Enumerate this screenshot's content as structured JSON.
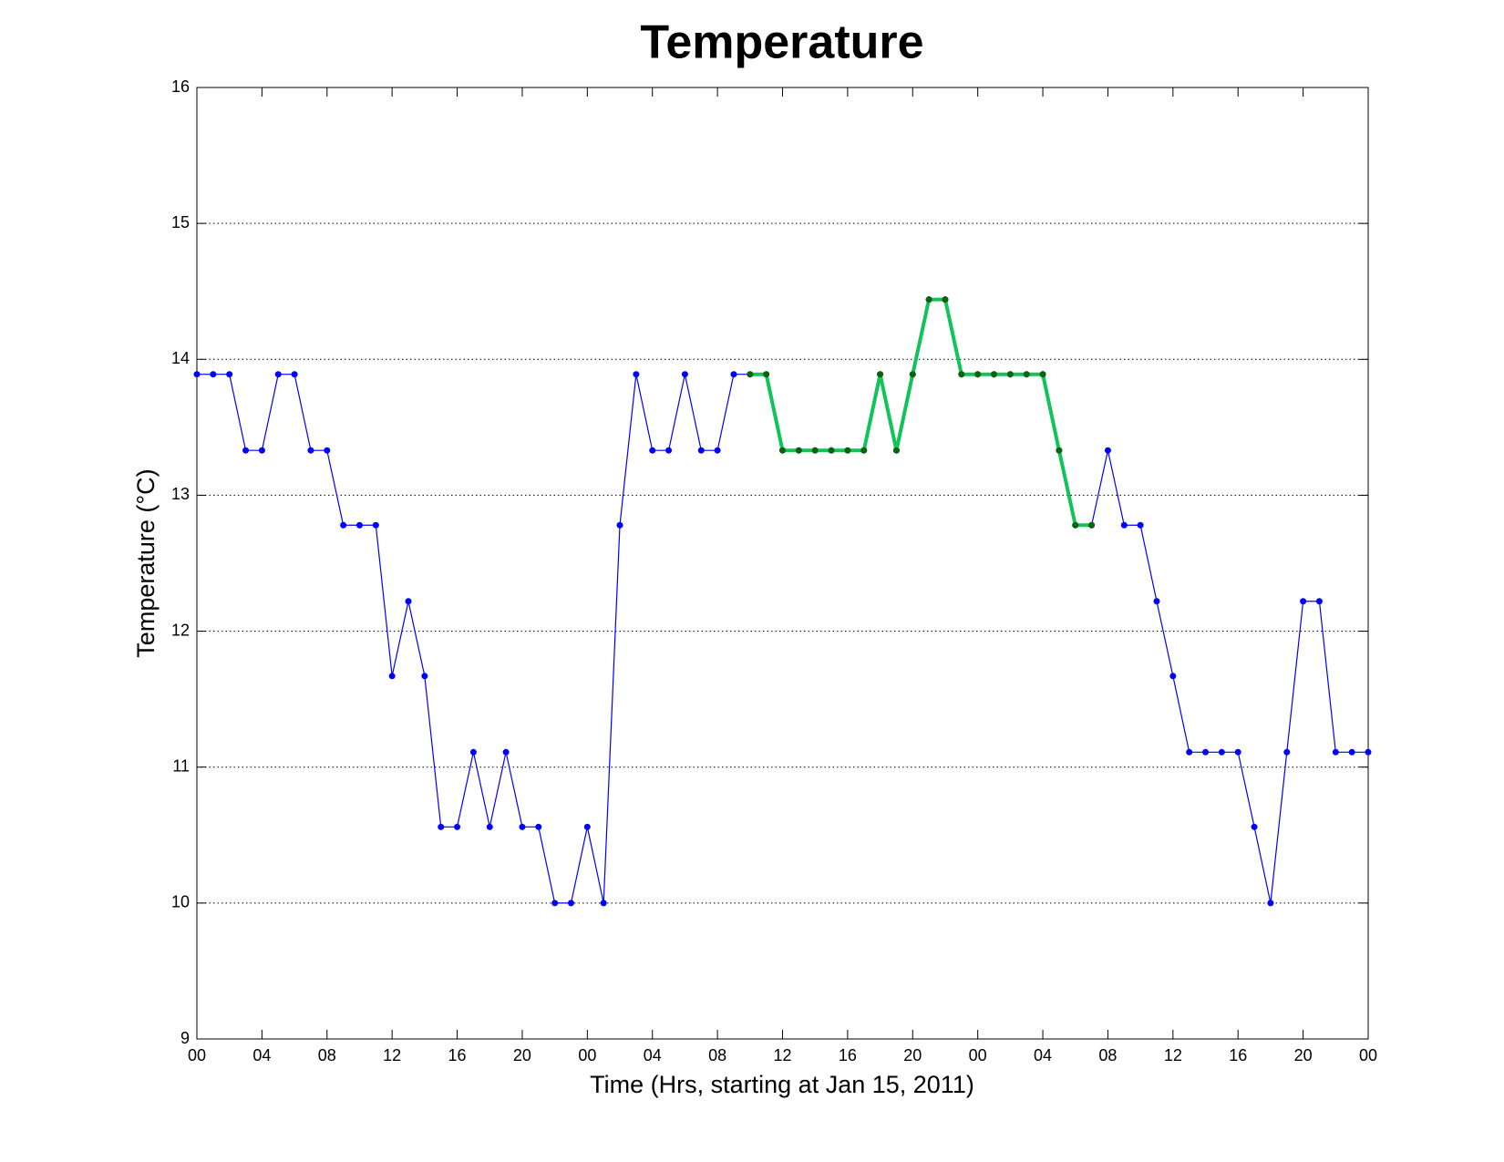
{
  "chart_data": {
    "type": "line",
    "title": "Temperature",
    "x_label": "Time (Hrs, starting at Jan 15, 2011)",
    "y_label": "Temperature (°C)",
    "x": [
      0,
      1,
      2,
      3,
      4,
      5,
      6,
      7,
      8,
      9,
      10,
      11,
      12,
      13,
      14,
      15,
      16,
      17,
      18,
      19,
      20,
      21,
      22,
      23,
      24,
      25,
      26,
      27,
      28,
      29,
      30,
      31,
      32,
      33,
      34,
      35,
      36,
      37,
      38,
      39,
      40,
      41,
      42,
      43,
      44,
      45,
      46,
      47,
      48,
      49,
      50,
      51,
      52,
      53,
      54,
      55,
      56,
      57,
      58,
      59,
      60,
      61,
      62,
      63,
      64,
      65,
      66,
      67,
      68,
      69,
      70,
      71,
      72
    ],
    "series": [
      {
        "color": "#0000ff",
        "marker_color": "#0000ff",
        "line_width": 1.2,
        "values": [
          13.89,
          13.89,
          13.89,
          13.33,
          13.33,
          13.89,
          13.89,
          13.33,
          13.33,
          12.78,
          12.78,
          12.78,
          11.67,
          12.22,
          11.67,
          10.56,
          10.56,
          11.11,
          10.56,
          11.11,
          10.56,
          10.56,
          10.0,
          10.0,
          10.56,
          10.0,
          12.78,
          13.89,
          13.33,
          13.33,
          13.89,
          13.33,
          13.33,
          13.89,
          13.89,
          13.89,
          13.33,
          13.33,
          13.33,
          13.33,
          13.33,
          13.33,
          13.89,
          13.33,
          13.89,
          14.44,
          14.44,
          13.89,
          13.89,
          13.89,
          13.89,
          13.89,
          13.89,
          13.33,
          12.78,
          12.78,
          13.33,
          12.78,
          12.78,
          12.22,
          11.67,
          11.11,
          11.11,
          11.11,
          11.11,
          10.56,
          10.0,
          11.11,
          12.22,
          12.22,
          11.11,
          11.11,
          11.11
        ]
      },
      {
        "color": "#11c45a",
        "marker_color": "#0a650a",
        "line_width": 4,
        "values": [
          null,
          null,
          null,
          null,
          null,
          null,
          null,
          null,
          null,
          null,
          null,
          null,
          null,
          null,
          null,
          null,
          null,
          null,
          null,
          null,
          null,
          null,
          null,
          null,
          null,
          null,
          null,
          null,
          null,
          null,
          null,
          null,
          null,
          null,
          13.89,
          13.89,
          13.33,
          13.33,
          13.33,
          13.33,
          13.33,
          13.33,
          13.89,
          13.33,
          13.89,
          14.44,
          14.44,
          13.89,
          13.89,
          13.89,
          13.89,
          13.89,
          13.89,
          13.33,
          12.78,
          12.78,
          null,
          null,
          null,
          null,
          null,
          null,
          null,
          null,
          null,
          null,
          null,
          null,
          null,
          null,
          null,
          null,
          null
        ]
      }
    ],
    "xlim": [
      0,
      72
    ],
    "xticks": [
      {
        "value": 0,
        "label": "00"
      },
      {
        "value": 4,
        "label": "04"
      },
      {
        "value": 8,
        "label": "08"
      },
      {
        "value": 12,
        "label": "12"
      },
      {
        "value": 16,
        "label": "16"
      },
      {
        "value": 20,
        "label": "20"
      },
      {
        "value": 24,
        "label": "00"
      },
      {
        "value": 28,
        "label": "04"
      },
      {
        "value": 32,
        "label": "08"
      },
      {
        "value": 36,
        "label": "12"
      },
      {
        "value": 40,
        "label": "16"
      },
      {
        "value": 44,
        "label": "20"
      },
      {
        "value": 48,
        "label": "00"
      },
      {
        "value": 52,
        "label": "04"
      },
      {
        "value": 56,
        "label": "08"
      },
      {
        "value": 60,
        "label": "12"
      },
      {
        "value": 64,
        "label": "16"
      },
      {
        "value": 68,
        "label": "20"
      },
      {
        "value": 72,
        "label": "00"
      }
    ],
    "ylim": [
      9,
      16
    ],
    "yticks": [
      9,
      10,
      11,
      12,
      13,
      14,
      15,
      16
    ],
    "grid": true
  }
}
